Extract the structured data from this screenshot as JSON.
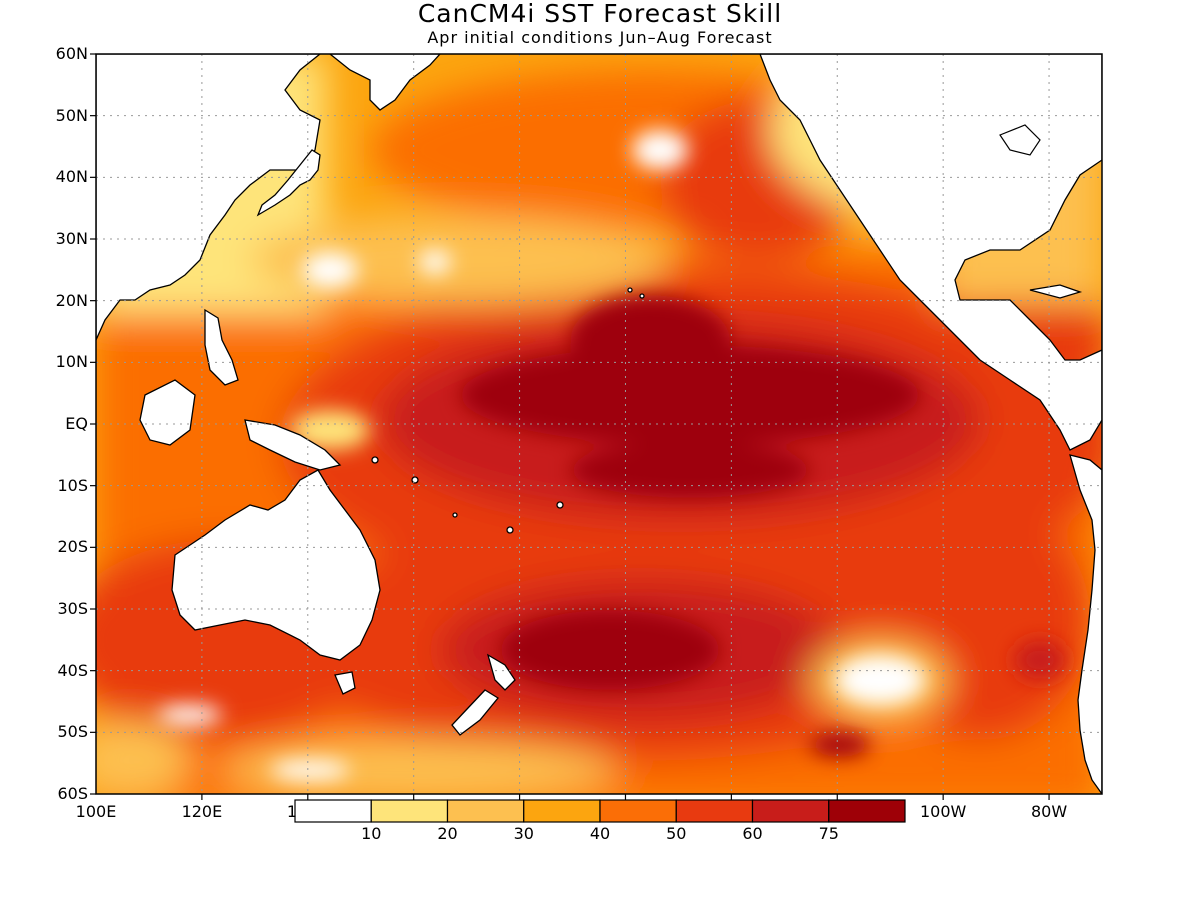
{
  "title": "CanCM4i SST Forecast Skill",
  "subtitle": "Apr initial conditions  Jun–Aug Forecast",
  "lat_labels": [
    "60N",
    "50N",
    "40N",
    "30N",
    "20N",
    "10N",
    "EQ",
    "10S",
    "20S",
    "30S",
    "40S",
    "50S",
    "60S"
  ],
  "lon_labels": [
    "100E",
    "120E",
    "100W",
    "80W"
  ],
  "colorbar": {
    "first_label": "1",
    "labels": [
      "10",
      "20",
      "30",
      "40",
      "50",
      "60",
      "75"
    ],
    "colors": [
      "#ffffff",
      "#fee47a",
      "#fdc050",
      "#fca50f",
      "#fb6e06",
      "#e83a10",
      "#c81d1a",
      "#9e0007"
    ]
  },
  "colors": {
    "land": "#ffffff",
    "coastline": "#000000",
    "grid": "#999999"
  }
}
